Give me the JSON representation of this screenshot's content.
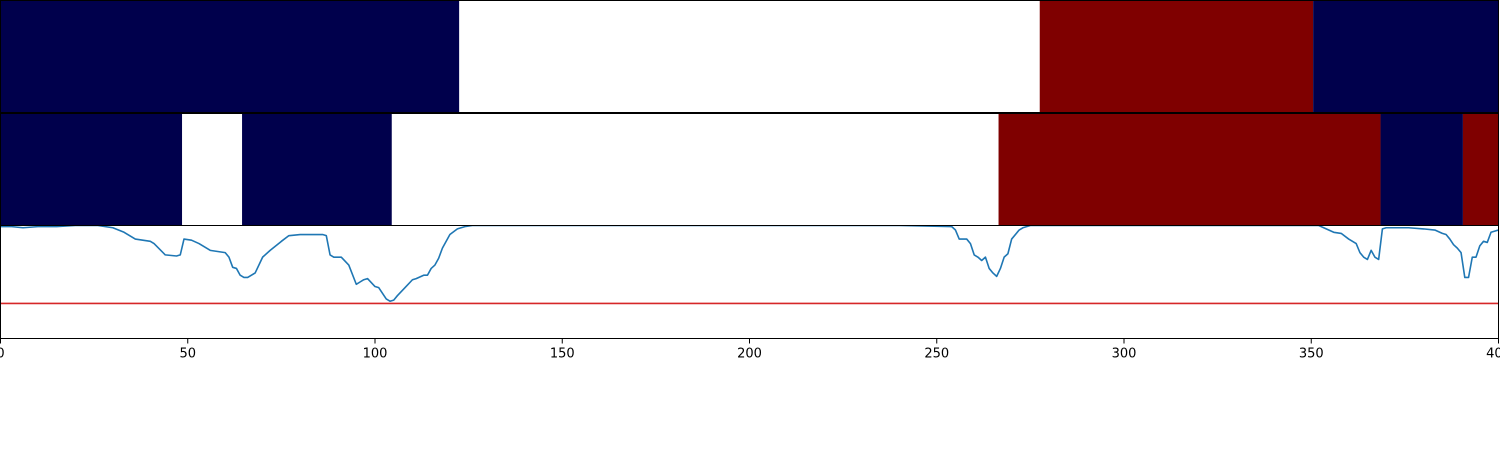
{
  "chart_data": {
    "type": "segmentation-track-with-line",
    "colors": {
      "low": "#00004c",
      "mid": "#ffffff",
      "high": "#7f0000",
      "line": "#1f77b4",
      "threshold": "#d62728",
      "frame": "#000000"
    },
    "xlim": [
      0,
      400
    ],
    "x_ticks": [
      0,
      50,
      100,
      150,
      200,
      250,
      300,
      350,
      400
    ],
    "x_tick_labels": [
      "0",
      "50",
      "100",
      "150",
      "200",
      "250",
      "300",
      "350",
      "400"
    ],
    "tracks": [
      {
        "segments": [
          {
            "start": 0,
            "end": 122.5,
            "class": "low"
          },
          {
            "start": 122.5,
            "end": 277.5,
            "class": "mid"
          },
          {
            "start": 277.5,
            "end": 350.5,
            "class": "high"
          },
          {
            "start": 350.5,
            "end": 400,
            "class": "low"
          }
        ]
      },
      {
        "segments": [
          {
            "start": 0,
            "end": 48.5,
            "class": "low"
          },
          {
            "start": 48.5,
            "end": 64.5,
            "class": "mid"
          },
          {
            "start": 64.5,
            "end": 104.5,
            "class": "low"
          },
          {
            "start": 104.5,
            "end": 266.5,
            "class": "mid"
          },
          {
            "start": 266.5,
            "end": 368.5,
            "class": "high"
          },
          {
            "start": 368.5,
            "end": 390.5,
            "class": "low"
          },
          {
            "start": 390.5,
            "end": 400,
            "class": "high"
          }
        ]
      }
    ],
    "line_panel": {
      "ylim": [
        0,
        1
      ],
      "threshold": 0.31,
      "series": {
        "x": [
          0,
          3,
          6,
          10,
          15,
          20,
          26,
          30,
          33,
          36,
          40,
          41,
          44,
          47,
          48,
          49,
          51,
          53,
          55,
          56,
          58,
          60,
          61,
          62,
          63,
          64,
          65,
          66,
          68,
          70,
          72,
          75,
          77,
          80,
          83,
          86,
          87,
          88,
          89,
          91,
          93,
          95,
          96,
          97,
          98,
          100,
          101,
          102,
          103,
          104,
          105,
          106,
          108,
          110,
          111,
          113,
          114,
          115,
          116,
          117,
          118,
          120,
          122,
          124,
          126,
          130,
          140,
          160,
          200,
          240,
          254,
          255,
          256,
          257,
          258,
          259,
          260,
          261,
          262,
          263,
          264,
          265,
          266,
          267,
          268,
          269,
          270,
          272,
          273,
          275,
          280,
          300,
          320,
          340,
          352,
          354,
          356,
          358,
          360,
          362,
          363,
          364,
          365,
          366,
          367,
          368,
          369,
          370,
          372,
          376,
          380,
          383,
          385,
          386,
          387,
          388,
          389,
          390,
          391,
          392,
          393,
          394,
          395,
          396,
          397,
          398,
          399,
          400
        ],
        "y": [
          0.99,
          0.99,
          0.98,
          0.99,
          0.99,
          1.0,
          1.0,
          0.98,
          0.94,
          0.88,
          0.86,
          0.84,
          0.74,
          0.73,
          0.74,
          0.88,
          0.87,
          0.84,
          0.8,
          0.78,
          0.77,
          0.76,
          0.72,
          0.63,
          0.62,
          0.56,
          0.54,
          0.54,
          0.58,
          0.72,
          0.78,
          0.86,
          0.91,
          0.92,
          0.92,
          0.92,
          0.91,
          0.74,
          0.72,
          0.72,
          0.65,
          0.48,
          0.5,
          0.52,
          0.53,
          0.46,
          0.45,
          0.4,
          0.35,
          0.33,
          0.34,
          0.38,
          0.45,
          0.52,
          0.53,
          0.56,
          0.56,
          0.62,
          0.65,
          0.71,
          0.8,
          0.92,
          0.97,
          0.99,
          1.0,
          1.0,
          1.0,
          1.0,
          1.0,
          1.0,
          0.99,
          0.96,
          0.88,
          0.88,
          0.88,
          0.84,
          0.74,
          0.72,
          0.69,
          0.72,
          0.62,
          0.58,
          0.55,
          0.62,
          0.72,
          0.75,
          0.88,
          0.96,
          0.98,
          1.0,
          1.0,
          1.0,
          1.0,
          1.0,
          1.0,
          0.97,
          0.94,
          0.93,
          0.88,
          0.84,
          0.76,
          0.72,
          0.7,
          0.78,
          0.72,
          0.7,
          0.97,
          0.98,
          0.98,
          0.98,
          0.97,
          0.96,
          0.93,
          0.92,
          0.88,
          0.83,
          0.8,
          0.76,
          0.54,
          0.54,
          0.72,
          0.72,
          0.82,
          0.86,
          0.85,
          0.94,
          0.95,
          0.96
        ]
      }
    }
  }
}
